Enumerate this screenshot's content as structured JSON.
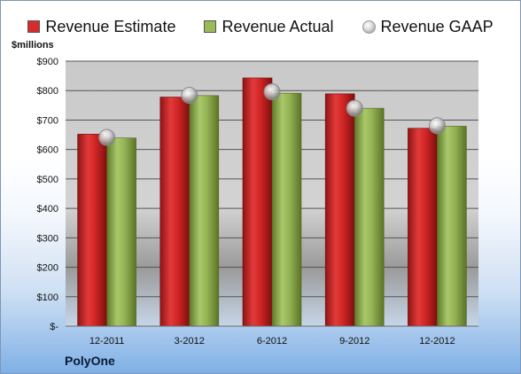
{
  "chart_data": {
    "type": "bar",
    "title": "",
    "xlabel": "",
    "ylabel": "$millions",
    "categories": [
      "12-2011",
      "3-2012",
      "6-2012",
      "9-2012",
      "12-2012"
    ],
    "series": [
      {
        "name": "Revenue Estimate",
        "type": "bar",
        "color": "#d82b2b",
        "values": [
          652,
          778,
          843,
          789,
          672
        ]
      },
      {
        "name": "Revenue Actual",
        "type": "bar",
        "color": "#9bbb59",
        "values": [
          639,
          783,
          791,
          740,
          679
        ]
      },
      {
        "name": "Revenue GAAP",
        "type": "marker",
        "color": "#bfbfbf",
        "values": [
          641,
          784,
          796,
          740,
          681
        ]
      }
    ],
    "yticks": [
      "$-",
      "$100",
      "$200",
      "$300",
      "$400",
      "$500",
      "$600",
      "$700",
      "$800",
      "$900"
    ],
    "ylim": [
      0,
      900
    ],
    "ystep": 100,
    "grid": true,
    "legend_position": "top"
  },
  "legend": {
    "items": [
      "Revenue Estimate",
      "Revenue Actual",
      "Revenue GAAP"
    ],
    "colors": [
      "#d82b2b",
      "#9bbb59",
      "#bfbfbf"
    ]
  },
  "company": "PolyOne"
}
